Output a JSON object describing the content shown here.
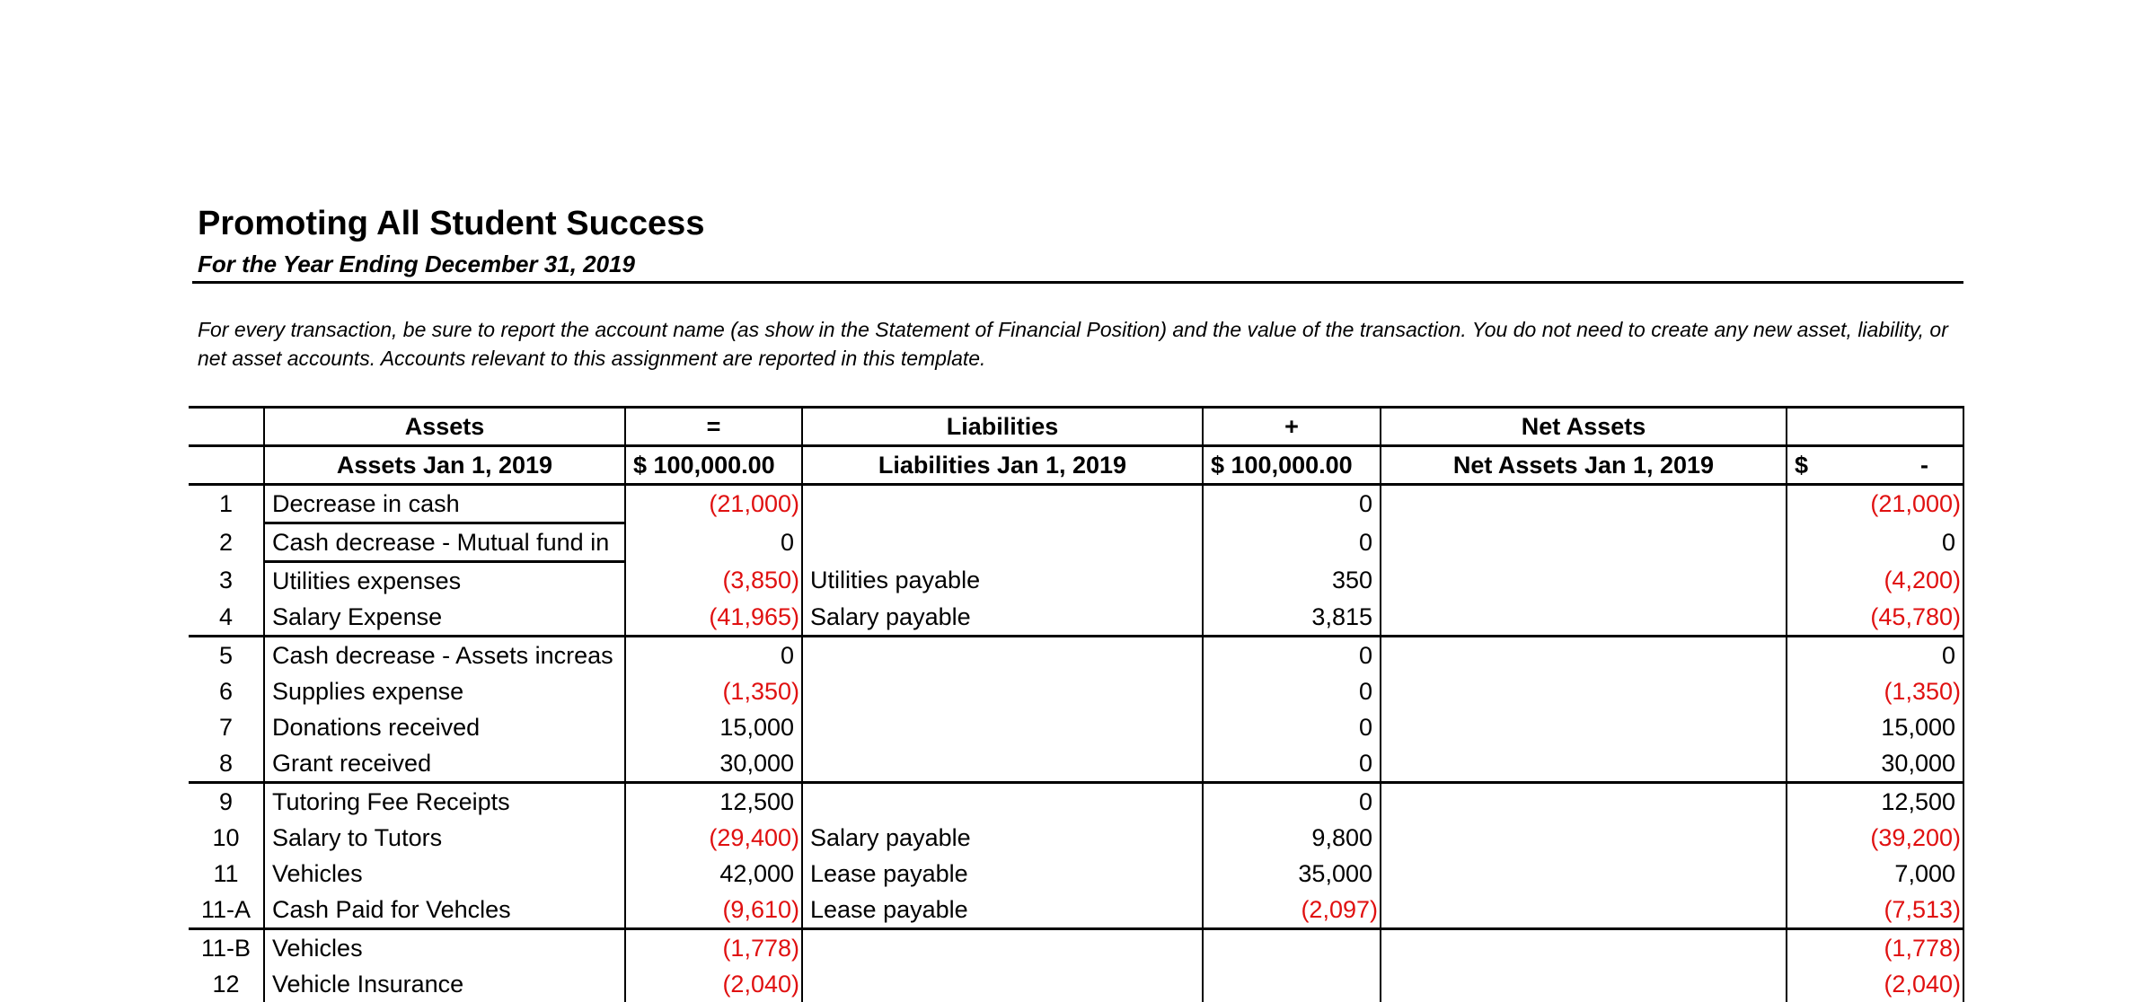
{
  "title": "Promoting All Student Success",
  "subtitle": "For the Year Ending December 31, 2019",
  "instructions": "For every transaction, be sure to report the account name (as show in the Statement of Financial Position) and the value of the transaction. You do not need to create any new asset, liability, or net asset accounts. Accounts relevant to this assignment are reported in this template.",
  "header1": [
    "",
    "Assets",
    "=",
    "Liabilities",
    "+",
    "Net Assets",
    ""
  ],
  "header2": {
    "assets_label": "Assets Jan 1, 2019",
    "assets_value": "$  100,000.00",
    "liabilities_label": "Liabilities Jan 1, 2019",
    "liabilities_value": "$  100,000.00",
    "net_assets_label": "Net Assets Jan 1, 2019",
    "net_assets_currency": "$",
    "net_assets_value": "-"
  },
  "colors": {
    "negative": "#e01010"
  },
  "rows": [
    {
      "no": "1",
      "asset": "Decrease in cash",
      "asset_amt": "(21,000)",
      "liability": "",
      "liab_amt": "0",
      "net_asset": "",
      "net_amt": "(21,000)"
    },
    {
      "no": "2",
      "asset": "Cash decrease - Mutual fund in",
      "asset_amt": "0",
      "liability": "",
      "liab_amt": "0",
      "net_asset": "",
      "net_amt": "0"
    },
    {
      "no": "3",
      "asset": "Utilities expenses",
      "asset_amt": "(3,850)",
      "liability": "Utilities payable",
      "liab_amt": "350",
      "net_asset": "",
      "net_amt": "(4,200)"
    },
    {
      "no": "4",
      "asset": "Salary Expense",
      "asset_amt": "(41,965)",
      "liability": "Salary payable",
      "liab_amt": "3,815",
      "net_asset": "",
      "net_amt": "(45,780)"
    },
    {
      "no": "5",
      "asset": "Cash decrease - Assets increas",
      "asset_amt": "0",
      "liability": "",
      "liab_amt": "0",
      "net_asset": "",
      "net_amt": "0"
    },
    {
      "no": "6",
      "asset": "Supplies expense",
      "asset_amt": "(1,350)",
      "liability": "",
      "liab_amt": "0",
      "net_asset": "",
      "net_amt": "(1,350)"
    },
    {
      "no": "7",
      "asset": "Donations received",
      "asset_amt": "15,000",
      "liability": "",
      "liab_amt": "0",
      "net_asset": "",
      "net_amt": "15,000"
    },
    {
      "no": "8",
      "asset": "Grant received",
      "asset_amt": "30,000",
      "liability": "",
      "liab_amt": "0",
      "net_asset": "",
      "net_amt": "30,000"
    },
    {
      "no": "9",
      "asset": "Tutoring Fee Receipts",
      "asset_amt": "12,500",
      "liability": "",
      "liab_amt": "0",
      "net_asset": "",
      "net_amt": "12,500"
    },
    {
      "no": "10",
      "asset": "Salary to Tutors",
      "asset_amt": "(29,400)",
      "liability": "Salary payable",
      "liab_amt": "9,800",
      "net_asset": "",
      "net_amt": "(39,200)"
    },
    {
      "no": "11",
      "asset": "Vehicles",
      "asset_amt": "42,000",
      "liability": "Lease payable",
      "liab_amt": "35,000",
      "net_asset": "",
      "net_amt": "7,000"
    },
    {
      "no": "11-A",
      "asset": "Cash Paid for Vehcles",
      "asset_amt": "(9,610)",
      "liability": "Lease payable",
      "liab_amt": "(2,097)",
      "net_asset": "",
      "net_amt": "(7,513)"
    },
    {
      "no": "11-B",
      "asset": "Vehicles",
      "asset_amt": "(1,778)",
      "liability": "",
      "liab_amt": "",
      "net_asset": "",
      "net_amt": "(1,778)"
    },
    {
      "no": "12",
      "asset": "Vehicle Insurance",
      "asset_amt": "(2,040)",
      "liability": "",
      "liab_amt": "",
      "net_asset": "",
      "net_amt": "(2,040)"
    }
  ]
}
